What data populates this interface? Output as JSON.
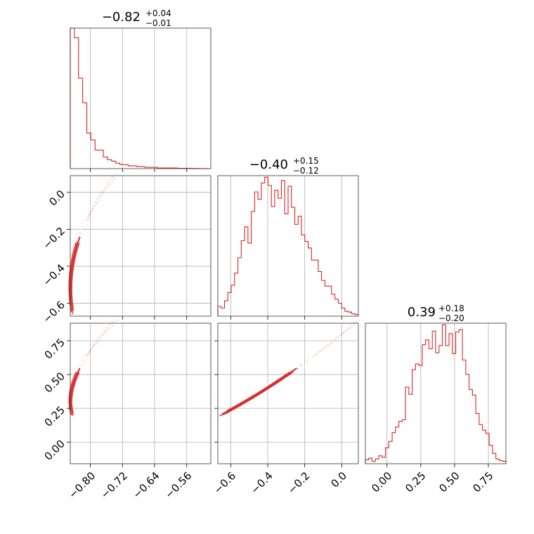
{
  "chart_data": {
    "type": "corner",
    "color": "#d62728",
    "parameters": [
      {
        "title_main": "−0.82",
        "title_sup": "+0.04",
        "title_sub": "−0.01",
        "range": [
          -0.85,
          -0.5
        ],
        "ticks": [
          -0.8,
          -0.72,
          -0.64,
          -0.56
        ],
        "tick_labels": [
          "−0.80",
          "−0.72",
          "−0.64",
          "−0.56"
        ],
        "hist_counts": [
          20.5,
          19.1,
          13.2,
          9.6,
          5.2,
          4.2,
          2.7,
          2.7,
          1.7,
          1.3,
          1.1,
          0.8,
          0.6,
          0.6,
          0.4,
          0.4,
          0.3,
          0.3,
          0.2,
          0.2,
          0.2,
          0.1,
          0.1,
          0.1,
          0.1,
          0.1,
          0.05,
          0.05,
          0.05,
          0.03,
          0.02,
          0.01,
          0.01,
          0.0
        ],
        "hist_max": 20.5
      },
      {
        "title_main": "−0.40",
        "title_sup": "+0.15",
        "title_sub": "−0.12",
        "range": [
          -0.67,
          0.09
        ],
        "ticks": [
          -0.6,
          -0.4,
          -0.2,
          0.0
        ],
        "tick_labels": [
          "−0.6",
          "−0.4",
          "−0.2",
          "0.0"
        ],
        "y_ticks": [
          0.0,
          -0.2,
          -0.4,
          -0.6
        ],
        "y_tick_labels": [
          "0.0",
          "−0.2",
          "−0.4",
          "−0.6"
        ],
        "hist_counts": [
          1.2,
          1.0,
          1.9,
          2.9,
          3.8,
          5.3,
          7.2,
          9.3,
          11.0,
          9.0,
          12.9,
          15.3,
          14.4,
          16.4,
          17.1,
          16.1,
          13.5,
          15.5,
          14.5,
          16.7,
          12.6,
          16.0,
          13.4,
          11.3,
          12.3,
          10.0,
          9.2,
          8.4,
          6.9,
          6.9,
          5.5,
          4.4,
          3.7,
          3.7,
          2.7,
          2.1,
          1.6,
          1.0,
          0.6,
          0.5,
          0.3,
          0.2
        ],
        "hist_max": 17.3
      },
      {
        "title_main": "0.39",
        "title_sup": "+0.18",
        "title_sub": "−0.20",
        "range": [
          -0.16,
          0.88
        ],
        "ticks": [
          0.0,
          0.25,
          0.5,
          0.75
        ],
        "tick_labels": [
          "0.00",
          "0.25",
          "0.50",
          "0.75"
        ],
        "y_ticks": [
          0.75,
          0.5,
          0.25,
          0.0
        ],
        "y_tick_labels": [
          "0.75",
          "0.50",
          "0.25",
          "0.00"
        ],
        "hist_counts": [
          0.5,
          0.7,
          0.3,
          0.6,
          1.0,
          0.8,
          2.0,
          2.8,
          3.9,
          4.6,
          5.3,
          5.5,
          9.6,
          8.7,
          11.8,
          12.5,
          12.3,
          14.9,
          15.5,
          14.4,
          16.6,
          13.9,
          14.8,
          17.4,
          14.8,
          16.3,
          13.8,
          16.5,
          16.8,
          13.0,
          11.2,
          9.3,
          8.6,
          6.3,
          4.9,
          4.2,
          3.8,
          2.3,
          1.3,
          0.6,
          0.4,
          0.3
        ],
        "hist_max": 17.6
      }
    ],
    "curve": {
      "param": "p2",
      "p1_from_p2": "p1 = -0.85 + 0.3*(p2+0.52)^2",
      "p3_from_p2": "p3 = 0.3 + 0.8*(p2+0.52) + 0.3*(p2+0.52)^2",
      "p2_core_range": [
        -0.66,
        -0.14
      ],
      "p2_tail_range": [
        -0.14,
        0.09
      ]
    }
  }
}
